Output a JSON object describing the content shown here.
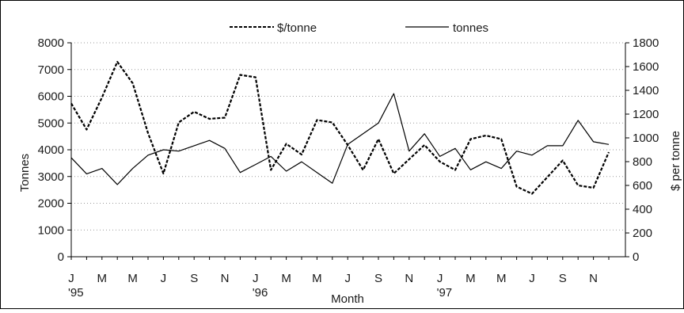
{
  "chart_data": {
    "type": "line",
    "title": "",
    "xlabel": "Month",
    "ylabel_left": "Tonnes",
    "ylabel_right": "$ per tonne",
    "y_left_lim": [
      0,
      8000
    ],
    "y_right_lim": [
      0,
      1800
    ],
    "y_left_ticks": [
      "0",
      "1000",
      "2000",
      "3000",
      "4000",
      "5000",
      "6000",
      "7000",
      "8000"
    ],
    "y_right_ticks": [
      "0",
      "200",
      "400",
      "600",
      "800",
      "1000",
      "1200",
      "1400",
      "1600",
      "1800"
    ],
    "x_ticks": [
      "J",
      "M",
      "M",
      "J",
      "S",
      "N",
      "J",
      "M",
      "M",
      "J",
      "S",
      "N",
      "J",
      "M",
      "M",
      "J",
      "S",
      "N"
    ],
    "year_labels": [
      {
        "label": "'95",
        "month_index": 0
      },
      {
        "label": "'96",
        "month_index": 12
      },
      {
        "label": "'97",
        "month_index": 24
      }
    ],
    "grid": "horizontal dotted",
    "legend_position": "top",
    "months": 36,
    "series": [
      {
        "name": "$/tonne",
        "axis": "right",
        "style": "dashed",
        "color": "#000000",
        "values": [
          1290,
          1070,
          1340,
          1640,
          1460,
          1040,
          700,
          1130,
          1220,
          1160,
          1170,
          1530,
          1510,
          730,
          950,
          860,
          1150,
          1130,
          940,
          730,
          990,
          700,
          820,
          940,
          800,
          730,
          990,
          1020,
          990,
          590,
          530,
          670,
          810,
          600,
          580,
          880
        ]
      },
      {
        "name": "tonnes",
        "axis": "left",
        "style": "solid",
        "color": "#000000",
        "values": [
          3700,
          3100,
          3300,
          2700,
          3300,
          3800,
          4000,
          3950,
          4150,
          4350,
          4050,
          3150,
          3450,
          3750,
          3200,
          3550,
          3150,
          2750,
          4200,
          4600,
          5000,
          6100,
          3950,
          4600,
          3750,
          4050,
          3250,
          3550,
          3300,
          3950,
          3800,
          4150,
          4150,
          5100,
          4300,
          4200
        ]
      }
    ]
  }
}
